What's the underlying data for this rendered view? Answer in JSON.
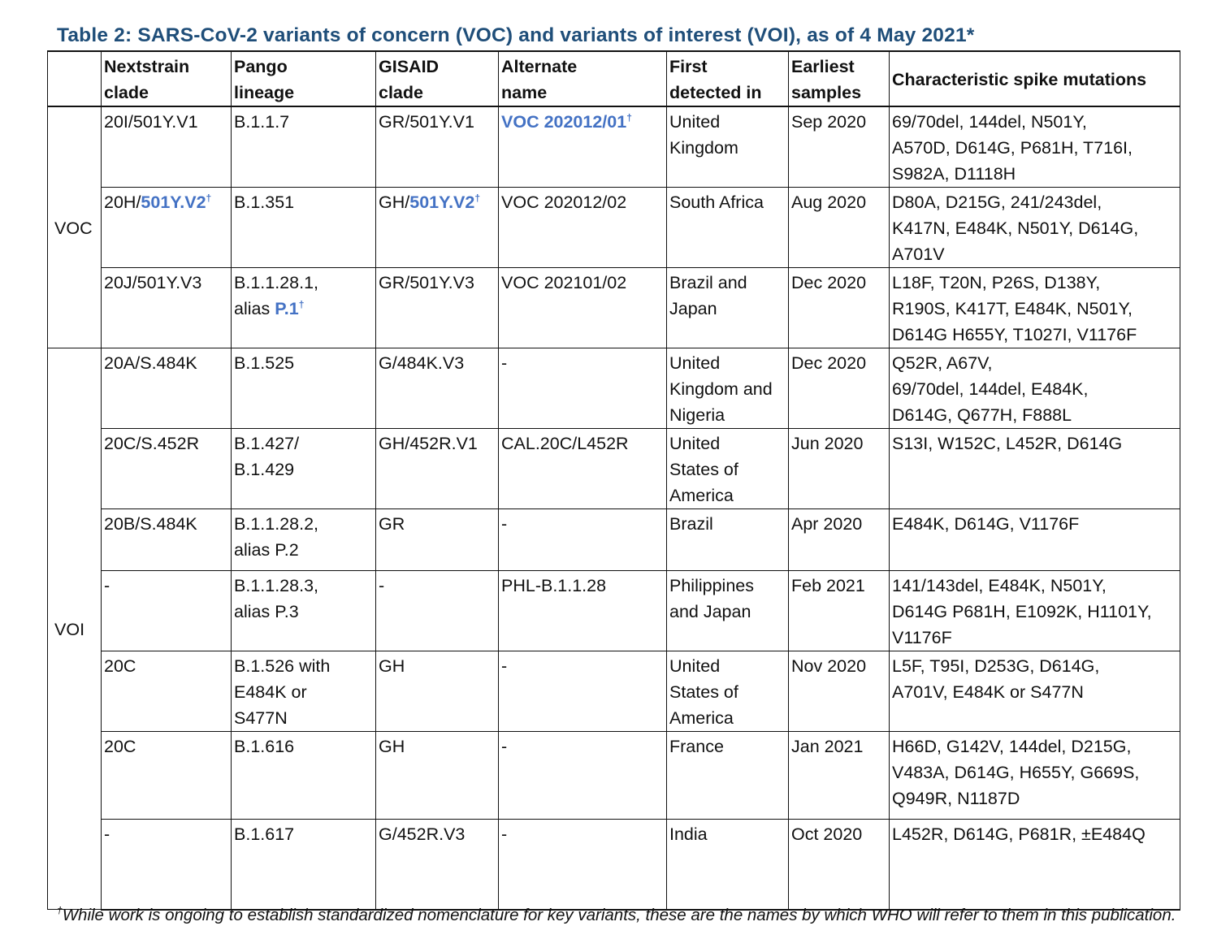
{
  "title": "Table 2: SARS-CoV-2 variants of concern (VOC) and variants of interest (VOI), as of 4 May 2021*",
  "colors": {
    "title": "#1f4e79",
    "highlight": "#4472c4"
  },
  "headers": [
    "",
    "Nextstrain\nclade",
    "Pango\nlineage",
    "GISAID\nclade",
    "Alternate\nname",
    "First\ndetected in",
    "Earliest\nsamples",
    "Characteristic spike mutations"
  ],
  "groups": [
    {
      "label": "VOC",
      "rows": [
        [
          "20I/501Y.V1",
          "B.1.1.7",
          "GR/501Y.V1",
          [
            {
              "t": "VOC 202012/01",
              "hl": true,
              "sup": "†"
            }
          ],
          "United\nKingdom",
          "Sep 2020",
          "69/70del, 144del, N501Y,\nA570D, D614G, P681H, T716I,\nS982A, D1118H"
        ],
        [
          [
            {
              "t": "20H/"
            },
            {
              "t": "501Y.V2",
              "hl": true,
              "sup": "†"
            }
          ],
          "B.1.351",
          [
            {
              "t": "GH/"
            },
            {
              "t": "501Y.V2",
              "hl": true,
              "sup": "†"
            }
          ],
          "VOC 202012/02",
          "South Africa",
          "Aug 2020",
          "D80A, D215G, 241/243del,\nK417N, E484K, N501Y, D614G,\nA701V"
        ],
        [
          "20J/501Y.V3",
          [
            {
              "t": "B.1.1.28.1,\nalias "
            },
            {
              "t": "P.1",
              "hl": true,
              "sup": "†"
            }
          ],
          "GR/501Y.V3",
          "VOC 202101/02",
          "Brazil and\nJapan",
          "Dec 2020",
          "L18F, T20N, P26S, D138Y,\nR190S, K417T, E484K, N501Y,\nD614G H655Y, T1027I, V1176F"
        ]
      ]
    },
    {
      "label": "VOI",
      "rows": [
        [
          "20A/S.484K",
          "B.1.525",
          "G/484K.V3",
          "-",
          "United\nKingdom and\nNigeria",
          "Dec 2020",
          "Q52R, A67V,\n69/70del, 144del, E484K,\nD614G, Q677H, F888L"
        ],
        [
          "20C/S.452R",
          "B.1.427/\nB.1.429",
          "GH/452R.V1",
          "CAL.20C/L452R",
          "United\nStates of\nAmerica",
          "Jun 2020",
          "S13I, W152C, L452R, D614G"
        ],
        [
          "20B/S.484K",
          "B.1.1.28.2,\nalias P.2",
          "GR",
          "-",
          "Brazil",
          "Apr 2020",
          "E484K, D614G, V1176F"
        ],
        [
          "-",
          "B.1.1.28.3,\nalias P.3",
          "-",
          "PHL-B.1.1.28",
          "Philippines\nand Japan",
          "Feb 2021",
          "141/143del, E484K, N501Y,\nD614G P681H, E1092K, H1101Y,\nV1176F"
        ],
        [
          "20C",
          "B.1.526 with\nE484K or\nS477N",
          "GH",
          "-",
          "United\nStates of\nAmerica",
          "Nov 2020",
          "L5F, T95I, D253G, D614G,\nA701V, E484K or S477N"
        ],
        [
          "20C",
          "B.1.616",
          "GH",
          "-",
          "France",
          "Jan 2021",
          "H66D, G142V, 144del, D215G,\nV483A, D614G, H655Y, G669S,\nQ949R, N1187D"
        ],
        [
          "-",
          "B.1.617",
          "G/452R.V3",
          "-",
          "India",
          "Oct 2020",
          "L452R, D614G, P681R, ±E484Q"
        ]
      ]
    }
  ],
  "footnote": {
    "mark": "†",
    "text": "While work is ongoing to establish standardized nomenclature for key variants, these are the names by which WHO will refer to them in this publication."
  }
}
